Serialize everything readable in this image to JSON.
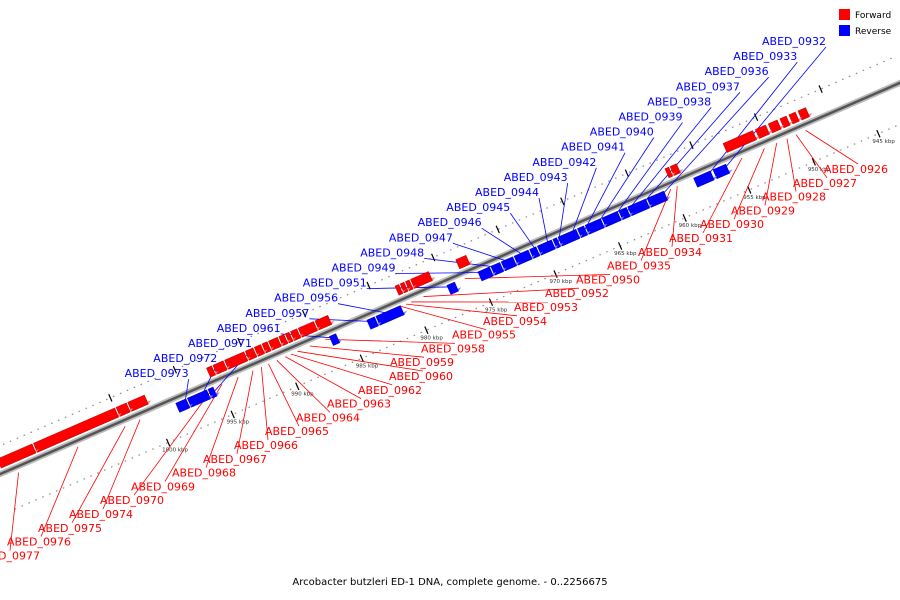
{
  "caption": "Arcobacter butzleri ED-1 DNA, complete genome. - 0..2256675",
  "legend": [
    {
      "label": "Forward",
      "color": "#ff0000"
    },
    {
      "label": "Reverse",
      "color": "#0000ff"
    }
  ],
  "colors": {
    "forward": "#ff0000",
    "reverse": "#0000ff",
    "backbone": "#888888"
  },
  "scale": {
    "kb_start": 942,
    "kb_end": 1012,
    "kb_labels": [
      945,
      950,
      955,
      960,
      965,
      970,
      975,
      980,
      985,
      990,
      995,
      1000
    ],
    "unit": "kbp"
  },
  "genes": [
    {
      "name": "ABED_0926",
      "strand": "forward",
      "start": 949.0,
      "end": 949.6
    },
    {
      "name": "ABED_0927",
      "strand": "forward",
      "start": 949.8,
      "end": 950.3
    },
    {
      "name": "ABED_0928",
      "strand": "forward",
      "start": 950.5,
      "end": 951.0
    },
    {
      "name": "ABED_0929",
      "strand": "forward",
      "start": 951.2,
      "end": 951.9
    },
    {
      "name": "ABED_0930",
      "strand": "forward",
      "start": 952.1,
      "end": 952.9
    },
    {
      "name": "ABED_0931",
      "strand": "forward",
      "start": 953.1,
      "end": 955.4
    },
    {
      "name": "ABED_0932",
      "strand": "reverse",
      "start": 955.8,
      "end": 956.8
    },
    {
      "name": "ABED_0933",
      "strand": "reverse",
      "start": 957.0,
      "end": 958.3
    },
    {
      "name": "ABED_0934",
      "strand": "forward",
      "start": 959.0,
      "end": 959.5
    },
    {
      "name": "ABED_0935",
      "strand": "forward",
      "start": 959.6,
      "end": 959.9
    },
    {
      "name": "ABED_0936",
      "strand": "reverse",
      "start": 960.6,
      "end": 961.9
    },
    {
      "name": "ABED_0937",
      "strand": "reverse",
      "start": 962.0,
      "end": 963.4
    },
    {
      "name": "ABED_0938",
      "strand": "reverse",
      "start": 963.5,
      "end": 964.1
    },
    {
      "name": "ABED_0939",
      "strand": "reverse",
      "start": 964.2,
      "end": 965.4
    },
    {
      "name": "ABED_0940",
      "strand": "reverse",
      "start": 965.5,
      "end": 966.7
    },
    {
      "name": "ABED_0941",
      "strand": "reverse",
      "start": 966.8,
      "end": 967.3
    },
    {
      "name": "ABED_0942",
      "strand": "reverse",
      "start": 967.4,
      "end": 968.8
    },
    {
      "name": "ABED_0943",
      "strand": "reverse",
      "start": 968.9,
      "end": 969.2
    },
    {
      "name": "ABED_0944",
      "strand": "reverse",
      "start": 969.3,
      "end": 970.4
    },
    {
      "name": "ABED_0945",
      "strand": "reverse",
      "start": 970.5,
      "end": 971.0
    },
    {
      "name": "ABED_0946",
      "strand": "reverse",
      "start": 971.1,
      "end": 972.2
    },
    {
      "name": "ABED_0947",
      "strand": "reverse",
      "start": 972.3,
      "end": 973.2
    },
    {
      "name": "ABED_0948",
      "strand": "reverse",
      "start": 973.3,
      "end": 974.0
    },
    {
      "name": "ABED_0949",
      "strand": "reverse",
      "start": 974.1,
      "end": 975.0
    },
    {
      "name": "ABED_0950",
      "strand": "forward",
      "start": 975.3,
      "end": 976.1
    },
    {
      "name": "ABED_0951",
      "strand": "reverse",
      "start": 976.8,
      "end": 977.4
    },
    {
      "name": "ABED_0952",
      "strand": "forward",
      "start": 978.2,
      "end": 979.6
    },
    {
      "name": "ABED_0953",
      "strand": "forward",
      "start": 979.7,
      "end": 980.0
    },
    {
      "name": "ABED_0954",
      "strand": "forward",
      "start": 980.1,
      "end": 980.4
    },
    {
      "name": "ABED_0955",
      "strand": "forward",
      "start": 980.5,
      "end": 980.8
    },
    {
      "name": "ABED_0956",
      "strand": "reverse",
      "start": 981.0,
      "end": 982.9
    },
    {
      "name": "ABED_0957",
      "strand": "reverse",
      "start": 983.0,
      "end": 983.6
    },
    {
      "name": "ABED_0958",
      "strand": "forward",
      "start": 986.0,
      "end": 987.0
    },
    {
      "name": "ABED_0959",
      "strand": "forward",
      "start": 987.1,
      "end": 988.3
    },
    {
      "name": "ABED_0960",
      "strand": "forward",
      "start": 988.4,
      "end": 988.9
    },
    {
      "name": "ABED_0961",
      "strand": "reverse",
      "start": 986.0,
      "end": 986.5
    },
    {
      "name": "ABED_0962",
      "strand": "forward",
      "start": 989.0,
      "end": 989.3
    },
    {
      "name": "ABED_0963",
      "strand": "forward",
      "start": 989.4,
      "end": 989.8
    },
    {
      "name": "ABED_0964",
      "strand": "forward",
      "start": 989.9,
      "end": 990.6
    },
    {
      "name": "ABED_0965",
      "strand": "forward",
      "start": 990.7,
      "end": 991.1
    },
    {
      "name": "ABED_0966",
      "strand": "forward",
      "start": 991.2,
      "end": 991.7
    },
    {
      "name": "ABED_0967",
      "strand": "forward",
      "start": 991.8,
      "end": 992.4
    },
    {
      "name": "ABED_0968",
      "strand": "forward",
      "start": 992.5,
      "end": 994.0
    },
    {
      "name": "ABED_0969",
      "strand": "forward",
      "start": 994.1,
      "end": 994.9
    },
    {
      "name": "ABED_0970",
      "strand": "forward",
      "start": 995.0,
      "end": 995.4
    },
    {
      "name": "ABED_0971",
      "strand": "reverse",
      "start": 995.5,
      "end": 995.9
    },
    {
      "name": "ABED_0972",
      "strand": "reverse",
      "start": 996.0,
      "end": 997.5
    },
    {
      "name": "ABED_0973",
      "strand": "reverse",
      "start": 997.6,
      "end": 998.4
    },
    {
      "name": "ABED_0974",
      "strand": "forward",
      "start": 1000.2,
      "end": 1001.5
    },
    {
      "name": "ABED_0975",
      "strand": "forward",
      "start": 1001.6,
      "end": 1002.4
    },
    {
      "name": "ABED_0976",
      "strand": "forward",
      "start": 1002.5,
      "end": 1008.8
    },
    {
      "name": "ABED_0977",
      "strand": "forward",
      "start": 1008.9,
      "end": 1011.6
    }
  ]
}
